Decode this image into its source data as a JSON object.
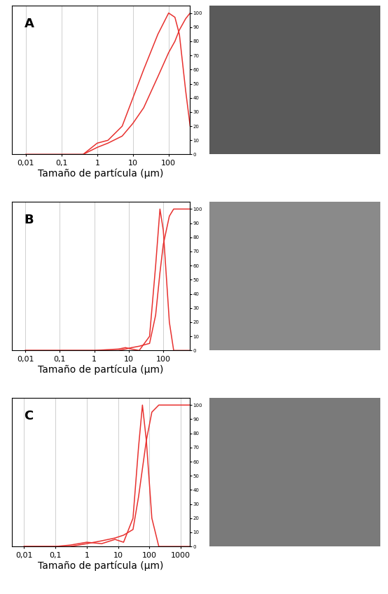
{
  "chart_data": [
    {
      "type": "line",
      "title": "A",
      "x_label": "Tamaño de partícula (μm)",
      "log": "x",
      "grid": true,
      "x": [
        0.01,
        0.1,
        0.4,
        1,
        2,
        5,
        10,
        20,
        50,
        100,
        150,
        200,
        300,
        400
      ],
      "series": [
        {
          "color": "#e8312f",
          "values": [
            0,
            0,
            0,
            8,
            10,
            20,
            40,
            60,
            85,
            100,
            97,
            85,
            45,
            20
          ]
        },
        {
          "color": "#e8312f",
          "values": [
            0,
            0,
            0,
            5,
            8,
            13,
            22,
            33,
            55,
            72,
            80,
            88,
            96,
            100
          ]
        }
      ],
      "xlim": [
        0.004,
        400
      ],
      "xticks": [
        {
          "value": 0.01,
          "label": "0,01"
        },
        {
          "value": 0.1,
          "label": "0,1"
        },
        1,
        10,
        100
      ],
      "ylim": [
        0,
        105
      ],
      "yticks": [
        0,
        10,
        20,
        30,
        40,
        50,
        60,
        70,
        80,
        90,
        100
      ]
    },
    {
      "type": "line",
      "title": "B",
      "x_label": "Tamaño de partícula (μm)",
      "log": "x",
      "grid": true,
      "x": [
        0.01,
        0.1,
        1,
        5,
        8,
        12,
        20,
        40,
        60,
        80,
        100,
        150,
        200,
        300,
        600
      ],
      "series": [
        {
          "color": "#e8312f",
          "values": [
            0,
            0,
            0,
            1,
            2,
            1,
            0,
            10,
            60,
            100,
            85,
            20,
            0,
            0,
            0
          ]
        },
        {
          "color": "#e8312f",
          "values": [
            0,
            0,
            0,
            0,
            1,
            2,
            3,
            5,
            25,
            55,
            75,
            95,
            100,
            100,
            100
          ]
        }
      ],
      "xlim": [
        0.004,
        600
      ],
      "xticks": [
        {
          "value": 0.01,
          "label": "0,01"
        },
        {
          "value": 0.1,
          "label": "0,1"
        },
        1,
        10,
        100
      ],
      "ylim": [
        0,
        105
      ],
      "yticks": [
        0,
        10,
        20,
        30,
        40,
        50,
        60,
        70,
        80,
        90,
        100
      ]
    },
    {
      "type": "line",
      "title": "C",
      "x_label": "Tamaño de partícula (μm)",
      "log": "x",
      "grid": true,
      "x": [
        0.01,
        0.1,
        0.3,
        1,
        3,
        8,
        15,
        30,
        45,
        60,
        80,
        120,
        200,
        400,
        2000
      ],
      "series": [
        {
          "color": "#e8312f",
          "values": [
            0,
            0,
            1,
            3,
            2,
            5,
            3,
            20,
            70,
            100,
            75,
            20,
            0,
            0,
            0
          ]
        },
        {
          "color": "#e8312f",
          "values": [
            0,
            0,
            0,
            2,
            4,
            6,
            8,
            12,
            35,
            55,
            75,
            95,
            100,
            100,
            100
          ]
        }
      ],
      "xlim": [
        0.004,
        2000
      ],
      "xticks": [
        {
          "value": 0.01,
          "label": "0,01"
        },
        {
          "value": 0.1,
          "label": "0,1"
        },
        1,
        10,
        100,
        1000
      ],
      "ylim": [
        0,
        105
      ],
      "yticks": [
        0,
        10,
        20,
        30,
        40,
        50,
        60,
        70,
        80,
        90,
        100
      ]
    }
  ]
}
